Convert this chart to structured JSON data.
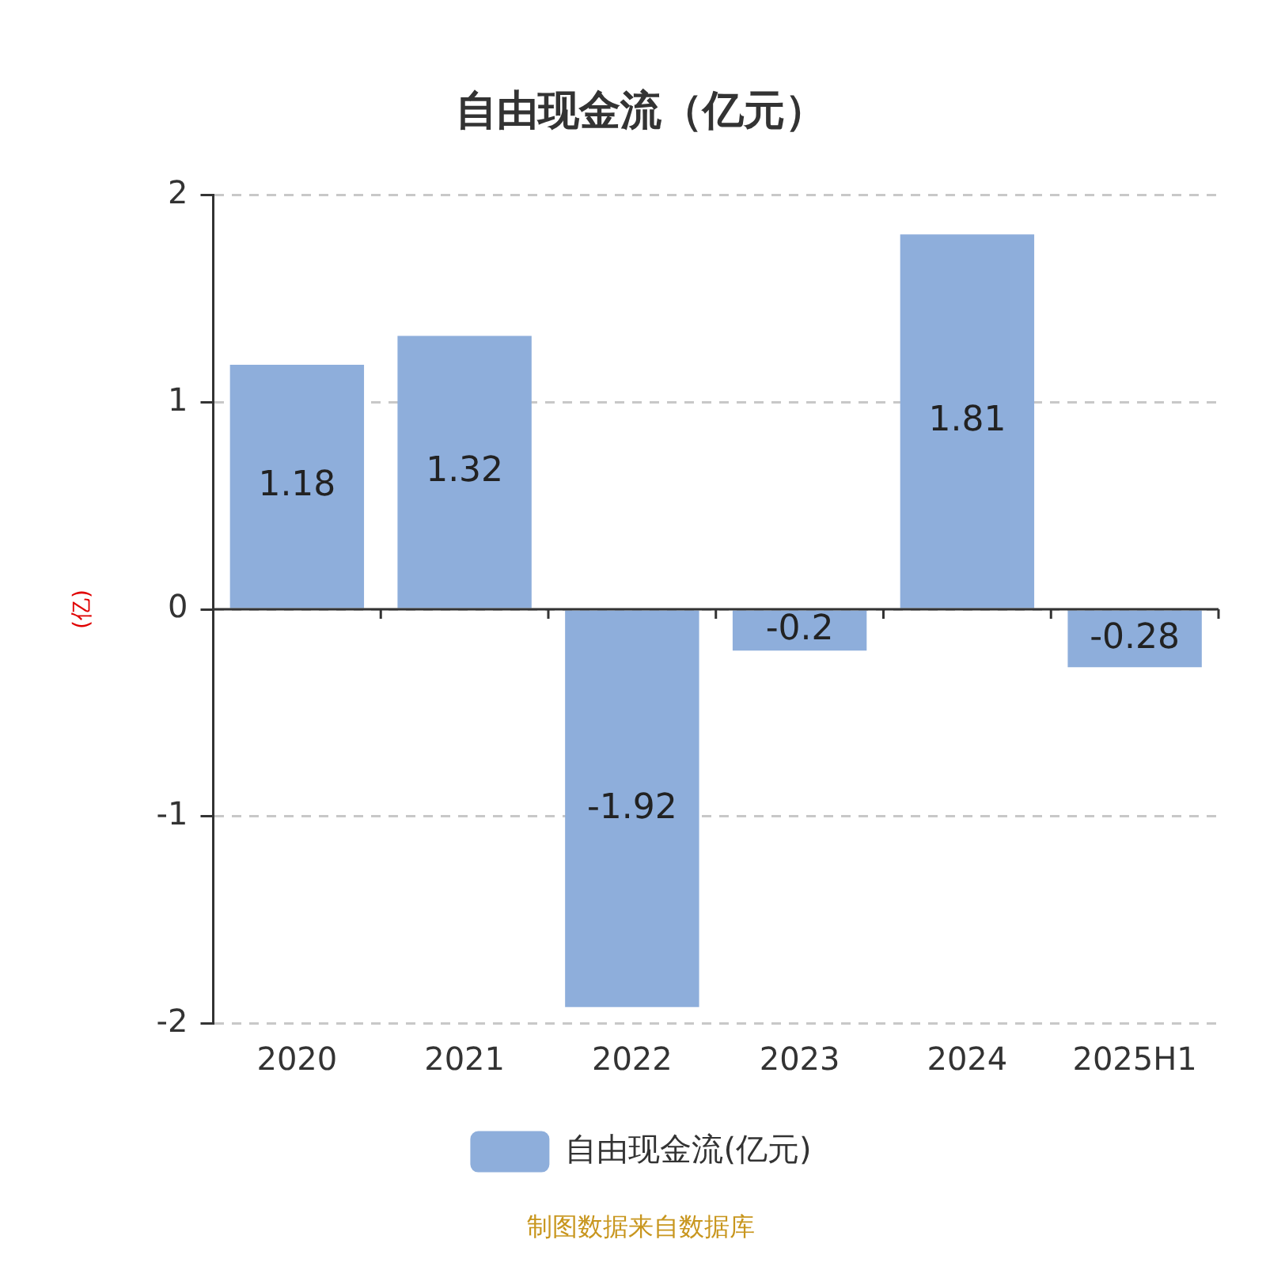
{
  "chart_data": {
    "type": "bar",
    "title": "自由现金流（亿元）",
    "ylabel": "(亿)",
    "categories": [
      "2020",
      "2021",
      "2022",
      "2023",
      "2024",
      "2025H1"
    ],
    "series": [
      {
        "name": "自由现金流(亿元)",
        "color": "#8eaedb",
        "values": [
          1.18,
          1.32,
          -1.92,
          -0.2,
          1.81,
          -0.28
        ]
      }
    ],
    "ylim": [
      -2,
      2
    ],
    "yticks": [
      -2,
      -1,
      0,
      1,
      2
    ],
    "grid": "y",
    "legend": "bottom",
    "data_labels": true,
    "annotations": [
      "制图数据来自数据库"
    ]
  }
}
